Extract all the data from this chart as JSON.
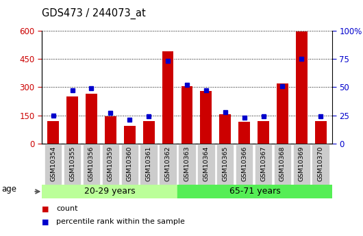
{
  "title": "GDS473 / 244073_at",
  "samples": [
    "GSM10354",
    "GSM10355",
    "GSM10356",
    "GSM10359",
    "GSM10360",
    "GSM10361",
    "GSM10362",
    "GSM10363",
    "GSM10364",
    "GSM10365",
    "GSM10366",
    "GSM10367",
    "GSM10368",
    "GSM10369",
    "GSM10370"
  ],
  "counts": [
    120,
    250,
    265,
    145,
    95,
    120,
    490,
    305,
    280,
    155,
    115,
    120,
    320,
    595,
    120
  ],
  "percentile_ranks": [
    25,
    47,
    49,
    27,
    21,
    24,
    73,
    52,
    47,
    28,
    23,
    24,
    51,
    75,
    24
  ],
  "group1_label": "20-29 years",
  "group2_label": "65-71 years",
  "group1_count": 7,
  "group2_count": 8,
  "ylim_left": [
    0,
    600
  ],
  "ylim_right": [
    0,
    100
  ],
  "yticks_left": [
    0,
    150,
    300,
    450,
    600
  ],
  "yticks_right": [
    0,
    25,
    50,
    75,
    100
  ],
  "bar_color": "#cc0000",
  "dot_color": "#0000cc",
  "bg_color_group1": "#bbff99",
  "bg_color_group2": "#55ee55",
  "tick_bg_color": "#cccccc",
  "legend_count_label": "count",
  "legend_pct_label": "percentile rank within the sample",
  "age_label": "age",
  "left_axis_color": "#cc0000",
  "right_axis_color": "#0000cc",
  "bar_width": 0.6
}
